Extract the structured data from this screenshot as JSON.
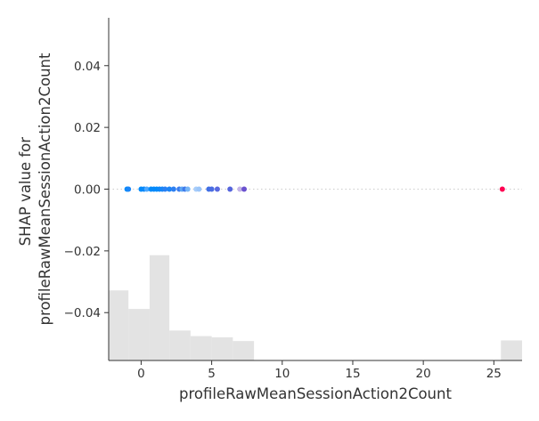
{
  "chart_data": {
    "type": "scatter",
    "title": "",
    "xlabel": "profileRawMeanSessionAction2Count",
    "ylabel_lines": [
      "SHAP value for",
      "profileRawMeanSessionAction2Count"
    ],
    "xlim": [
      -2.3,
      27.0
    ],
    "ylim": [
      -0.0555,
      0.0555
    ],
    "xticks": [
      0,
      5,
      10,
      15,
      20,
      25
    ],
    "yticks": [
      -0.04,
      -0.02,
      0.0,
      0.02,
      0.04
    ],
    "xtick_labels": [
      "0",
      "5",
      "10",
      "15",
      "20",
      "25"
    ],
    "ytick_labels": [
      "−0.04",
      "−0.02",
      "0.00",
      "0.02",
      "0.04"
    ],
    "zero_line": true,
    "colors": {
      "histogram": "#e3e3e3",
      "spine": "#333333",
      "zero_line": "#cccccc"
    },
    "histogram": [
      {
        "x0": -2.3,
        "x1": -0.9,
        "height": 0.0227
      },
      {
        "x0": -0.9,
        "x1": 0.6,
        "height": 0.0167
      },
      {
        "x0": 0.6,
        "x1": 2.0,
        "height": 0.0341
      },
      {
        "x0": 2.0,
        "x1": 3.5,
        "height": 0.0097
      },
      {
        "x0": 3.5,
        "x1": 5.0,
        "height": 0.0079
      },
      {
        "x0": 5.0,
        "x1": 6.5,
        "height": 0.0075
      },
      {
        "x0": 6.5,
        "x1": 8.0,
        "height": 0.0063
      },
      {
        "x0": 25.5,
        "x1": 27.0,
        "height": 0.0065
      }
    ],
    "points": [
      {
        "x": -1.0,
        "y": 0.0,
        "color": "#008bfb"
      },
      {
        "x": -0.9,
        "y": 0.0,
        "color": "#1a86f8"
      },
      {
        "x": 0.0,
        "y": 0.0,
        "color": "#008bfb"
      },
      {
        "x": 0.2,
        "y": 0.0,
        "color": "#0a89fa"
      },
      {
        "x": 0.4,
        "y": 0.0,
        "color": "#4da8ff"
      },
      {
        "x": 0.7,
        "y": 0.0,
        "color": "#008bfb"
      },
      {
        "x": 0.9,
        "y": 0.0,
        "color": "#0689fa"
      },
      {
        "x": 1.1,
        "y": 0.0,
        "color": "#008bfb"
      },
      {
        "x": 1.3,
        "y": 0.0,
        "color": "#0b88fa"
      },
      {
        "x": 1.5,
        "y": 0.0,
        "color": "#1686f8"
      },
      {
        "x": 1.7,
        "y": 0.0,
        "color": "#2a81f3"
      },
      {
        "x": 2.0,
        "y": 0.0,
        "color": "#1c85f6"
      },
      {
        "x": 2.3,
        "y": 0.0,
        "color": "#2d80f2"
      },
      {
        "x": 2.7,
        "y": 0.0,
        "color": "#3a7ced"
      },
      {
        "x": 2.9,
        "y": 0.0,
        "color": "#5fa8f5"
      },
      {
        "x": 3.1,
        "y": 0.0,
        "color": "#3f7aeb"
      },
      {
        "x": 3.3,
        "y": 0.0,
        "color": "#78b6f7"
      },
      {
        "x": 3.9,
        "y": 0.0,
        "color": "#a8cdfa"
      },
      {
        "x": 4.1,
        "y": 0.0,
        "color": "#9cc6f9"
      },
      {
        "x": 4.8,
        "y": 0.0,
        "color": "#3f6fe5"
      },
      {
        "x": 5.0,
        "y": 0.0,
        "color": "#4a6de2"
      },
      {
        "x": 5.4,
        "y": 0.0,
        "color": "#5a6ae0"
      },
      {
        "x": 6.3,
        "y": 0.0,
        "color": "#5565dd"
      },
      {
        "x": 7.0,
        "y": 0.0,
        "color": "#c4b5e8"
      },
      {
        "x": 7.3,
        "y": 0.0,
        "color": "#6b52cf"
      },
      {
        "x": 25.6,
        "y": 0.0,
        "color": "#ff0052"
      }
    ]
  }
}
